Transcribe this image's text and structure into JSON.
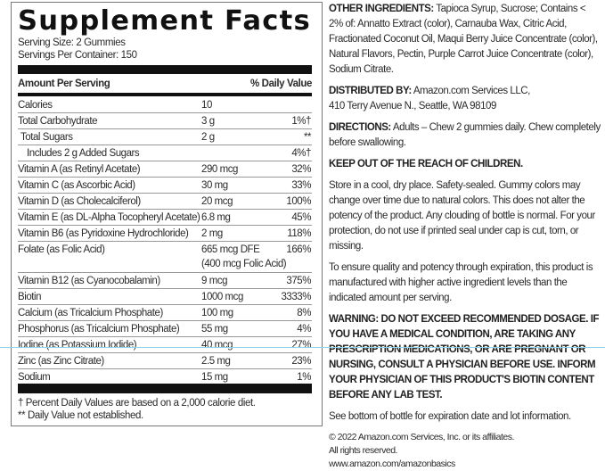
{
  "facts": {
    "title": "Supplement Facts",
    "serving_size": "Serving Size: 2 Gummies",
    "servings_per_container": "Servings Per Container: 150",
    "header_amount": "Amount Per Serving",
    "header_dv": "% Daily Value",
    "rows": [
      {
        "name": "Calories",
        "amount": "10",
        "dv": ""
      },
      {
        "name": "Total Carbohydrate",
        "amount": "3 g",
        "dv": "1%†"
      },
      {
        "name": "Total Sugars",
        "amount": "2 g",
        "dv": "**"
      },
      {
        "name": "Includes 2 g Added Sugars",
        "amount": "",
        "dv": "4%†"
      },
      {
        "name": "Vitamin A (as Retinyl Acetate)",
        "amount": "290 mcg",
        "dv": "32%"
      },
      {
        "name": "Vitamin C (as Ascorbic Acid)",
        "amount": "30 mg",
        "dv": "33%"
      },
      {
        "name": "Vitamin D (as Cholecalciferol)",
        "amount": "20 mcg",
        "dv": "100%"
      },
      {
        "name": "Vitamin E (as DL-Alpha Tocopheryl Acetate)",
        "amount": "6.8 mg",
        "dv": "45%"
      },
      {
        "name": "Vitamin B6 (as Pyridoxine Hydrochloride)",
        "amount": "2 mg",
        "dv": "118%"
      },
      {
        "name": "Folate (as Folic Acid)",
        "amount": "665 mcg DFE\n(400 mcg Folic Acid)",
        "dv": "166%"
      },
      {
        "name": "Vitamin B12 (as Cyanocobalamin)",
        "amount": "9 mcg",
        "dv": "375%"
      },
      {
        "name": "Biotin",
        "amount": "1000 mcg",
        "dv": "3333%"
      },
      {
        "name": "Calcium (as Tricalcium Phosphate)",
        "amount": "100 mg",
        "dv": "8%"
      },
      {
        "name": "Phosphorus (as Tricalcium Phosphate)",
        "amount": "55 mg",
        "dv": "4%"
      },
      {
        "name": "Iodine (as Potassium Iodide)",
        "amount": "40 mcg",
        "dv": "27%"
      },
      {
        "name": "Zinc (as Zinc Citrate)",
        "amount": "2.5 mg",
        "dv": "23%"
      },
      {
        "name": "Sodium",
        "amount": "15 mg",
        "dv": "1%"
      }
    ],
    "footnote1": "† Percent Daily Values are based on a 2,000 calorie diet.",
    "footnote2": "** Daily Value not established."
  },
  "info": {
    "other_label": "OTHER INGREDIENTS:",
    "other_text": " Tapioca Syrup, Sucrose; Contains < 2% of: Annatto Extract (color), Carnauba Wax, Citric Acid, Fractionated Coconut Oil, Maqui Berry Juice Concentrate (color), Natural Flavors, Pectin, Purple Carrot Juice Concentrate (color), Sodium Citrate.",
    "dist_label": "DISTRIBUTED BY:",
    "dist_text": " Amazon.com Services LLC,",
    "dist_address": "410 Terry Avenue N., Seattle, WA 98109",
    "dir_label": "DIRECTIONS:",
    "dir_text": " Adults – Chew 2 gummies daily. Chew completely before swallowing.",
    "keep_out": "KEEP OUT OF THE REACH OF CHILDREN.",
    "storage": "Store in a cool, dry place. Safety-sealed. Gummy colors may change over time due to natural colors. This does not alter the potency of the product. Any clouding of bottle is normal. For your protection, do not use if printed seal under cap is cut, torn, or missing.",
    "potency": "To ensure quality and potency through expiration, this product is manufactured with higher active ingredient levels than the indicated amount per serving.",
    "warning": "WARNING:  DO NOT EXCEED RECOMMENDED DOSAGE. IF YOU HAVE A MEDICAL CONDITION, ARE TAKING ANY PRESCRIPTION MEDICATIONS, OR ARE PREGNANT OR NURSING, CONSULT A PHYSICIAN BEFORE USE. INFORM YOUR PHYSICIAN OF THIS PRODUCT'S BIOTIN CONTENT BEFORE ANY LAB TEST.",
    "expiration": "See bottom of bottle for expiration date and lot information.",
    "copyright": "© 2022 Amazon.com Services, Inc. or its affiliates.",
    "rights": "All rights reserved.",
    "url": "www.amazon.com/amazonbasics"
  }
}
